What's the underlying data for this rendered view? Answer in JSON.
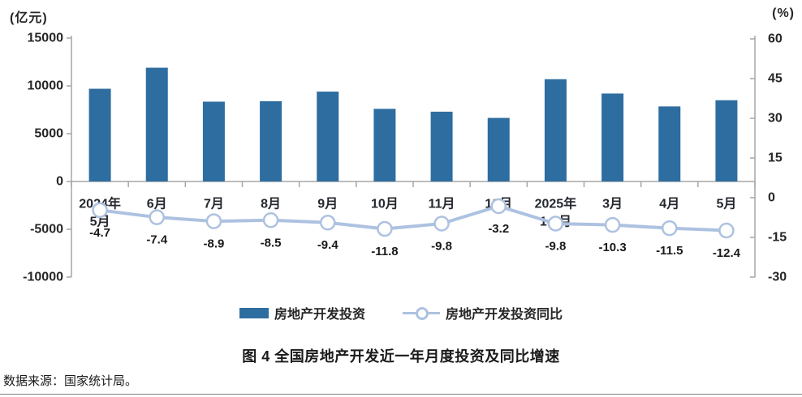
{
  "page": {
    "title": "图 4  全国房地产开发近一年月度投资及同比增速",
    "source_note": "数据来源：国家统计局。"
  },
  "legend": {
    "bar_label": "房地产开发投资",
    "line_label": "房地产开发投资同比"
  },
  "chart_data": {
    "type": "bar+line combo",
    "categories": [
      [
        "2024年",
        "5月"
      ],
      [
        "6月"
      ],
      [
        "7月"
      ],
      [
        "8月"
      ],
      [
        "9月"
      ],
      [
        "10月"
      ],
      [
        "11月"
      ],
      [
        "12月"
      ],
      [
        "2025年",
        "1-2月"
      ],
      [
        "3月"
      ],
      [
        "4月"
      ],
      [
        "5月"
      ]
    ],
    "series": [
      {
        "name": "房地产开发投资",
        "type": "bar",
        "axis": "left",
        "unit": "亿元",
        "color": "#2e6da0",
        "values": [
          9700,
          11900,
          8350,
          8400,
          9400,
          7600,
          7300,
          6650,
          10700,
          9200,
          7850,
          8500
        ]
      },
      {
        "name": "房地产开发投资同比",
        "type": "line",
        "axis": "right",
        "unit": "%",
        "color": "#adc2e0",
        "marker_fill": "#ffffff",
        "values": [
          -4.7,
          -7.4,
          -8.9,
          -8.5,
          -9.4,
          -11.8,
          -9.8,
          -3.2,
          -9.8,
          -10.3,
          -11.5,
          -12.4
        ]
      }
    ],
    "left_axis": {
      "label": "(亿元)",
      "min": -10000,
      "max": 15000,
      "step": 5000,
      "ticks": [
        15000,
        10000,
        5000,
        0,
        -5000,
        -10000
      ]
    },
    "right_axis": {
      "label": "(%)",
      "min": -30,
      "max": 60,
      "step": 15,
      "ticks": [
        60,
        45,
        30,
        15,
        0,
        -15,
        -30
      ]
    },
    "grid": "off",
    "legend_position": "bottom",
    "axis_color": "#a6a6a6"
  }
}
